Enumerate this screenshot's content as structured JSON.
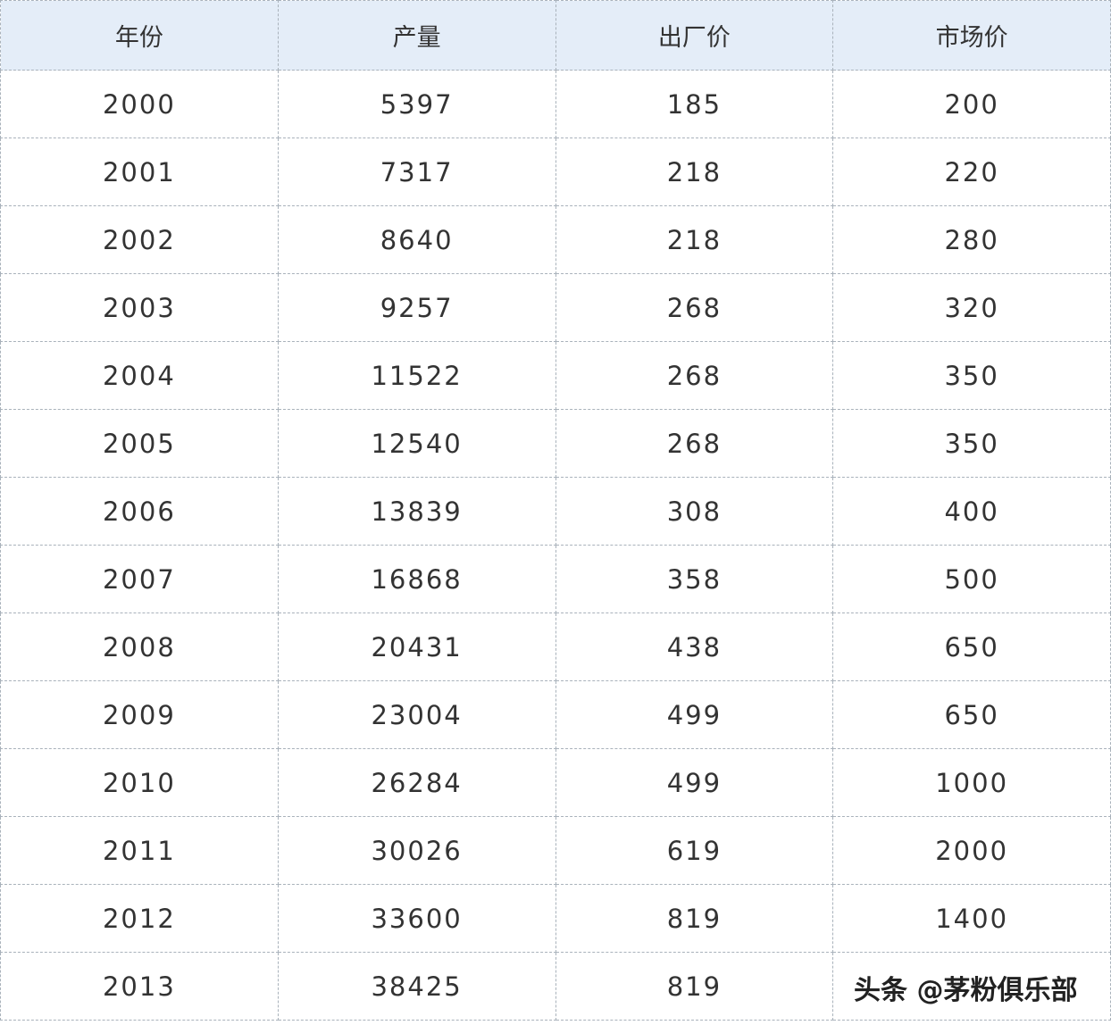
{
  "table": {
    "header": [
      "年份",
      "产量",
      "出厂价",
      "市场价"
    ],
    "rows": [
      [
        2000,
        5397,
        185,
        200
      ],
      [
        2001,
        7317,
        218,
        220
      ],
      [
        2002,
        8640,
        218,
        280
      ],
      [
        2003,
        9257,
        268,
        320
      ],
      [
        2004,
        11522,
        268,
        350
      ],
      [
        2005,
        12540,
        268,
        350
      ],
      [
        2006,
        13839,
        308,
        400
      ],
      [
        2007,
        16868,
        358,
        500
      ],
      [
        2008,
        20431,
        438,
        650
      ],
      [
        2009,
        23004,
        499,
        650
      ],
      [
        2010,
        26284,
        499,
        1000
      ],
      [
        2011,
        30026,
        619,
        2000
      ],
      [
        2012,
        33600,
        819,
        1400
      ],
      [
        2013,
        38425,
        819,
        null
      ]
    ]
  },
  "watermark": "头条 @茅粉俱乐部"
}
